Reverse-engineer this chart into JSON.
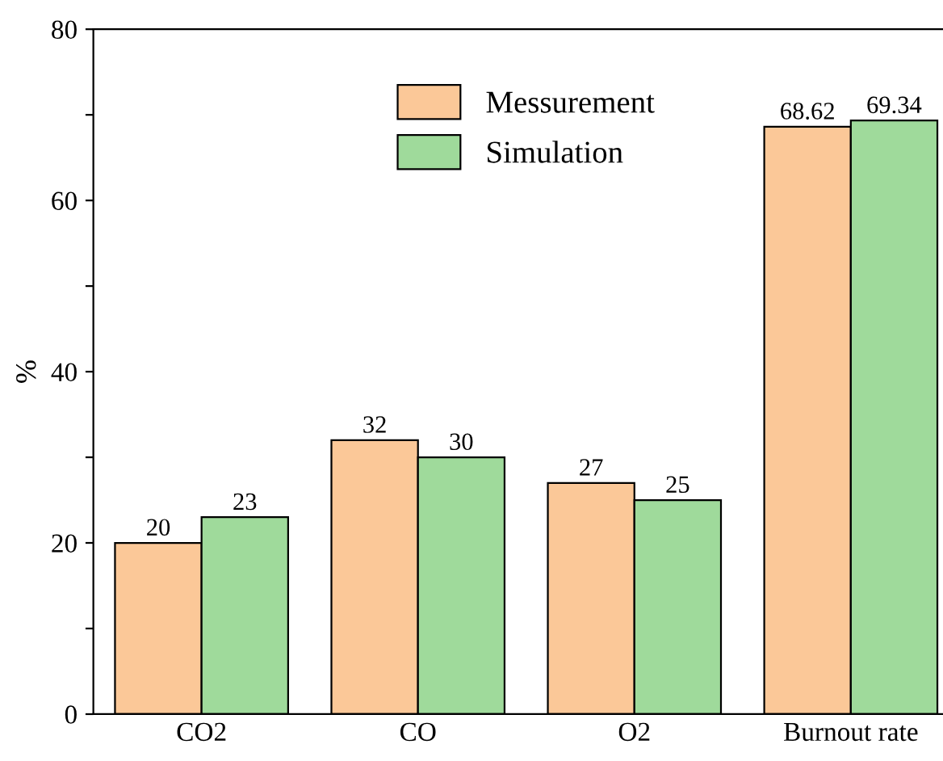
{
  "chart_data": {
    "type": "bar",
    "ylabel": "%",
    "categories": [
      "CO2",
      "CO",
      "O2",
      "Burnout rate"
    ],
    "series": [
      {
        "name": "Messurement",
        "color": "#fbc898",
        "values": [
          20,
          32,
          27,
          68.62
        ]
      },
      {
        "name": "Simulation",
        "color": "#9fda9b",
        "values": [
          23,
          30,
          25,
          69.34
        ]
      }
    ],
    "ylim": [
      0,
      80
    ],
    "yticks": [
      0,
      {
        "value": 10,
        "label": null
      },
      20,
      {
        "value": 30,
        "label": null
      },
      40,
      {
        "value": 50,
        "label": null
      },
      60,
      {
        "value": 70,
        "label": null
      },
      80
    ],
    "data_labels": true,
    "legend": "top",
    "grid": false
  }
}
